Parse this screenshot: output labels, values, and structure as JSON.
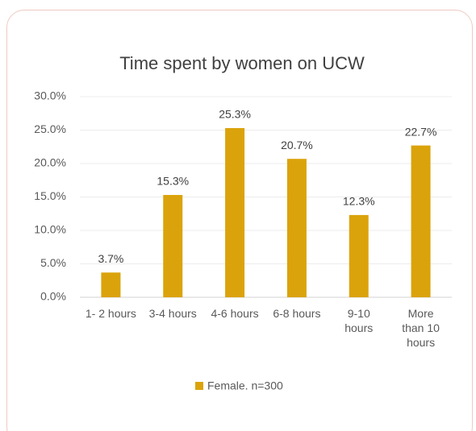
{
  "chart_data": {
    "type": "bar",
    "title": "Time spent by women on UCW",
    "categories": [
      "1- 2 hours",
      "3-4 hours",
      "4-6 hours",
      "6-8 hours",
      "9-10 hours",
      "More than 10 hours"
    ],
    "series": [
      {
        "name": "Female. n=300",
        "color": "#dba30b",
        "values": [
          3.7,
          15.3,
          25.3,
          20.7,
          12.3,
          22.7
        ],
        "value_labels": [
          "3.7%",
          "15.3%",
          "25.3%",
          "20.7%",
          "12.3%",
          "22.7%"
        ]
      }
    ],
    "ylim": [
      0,
      30
    ],
    "yticks": [
      {
        "value": 0,
        "label": "0.0%"
      },
      {
        "value": 5,
        "label": "5.0%"
      },
      {
        "value": 10,
        "label": "10.0%"
      },
      {
        "value": 15,
        "label": "15.0%"
      },
      {
        "value": 20,
        "label": "20.0%"
      },
      {
        "value": 25,
        "label": "25.0%"
      },
      {
        "value": 30,
        "label": "30.0%"
      }
    ],
    "grid": true,
    "legend": "bottom"
  }
}
